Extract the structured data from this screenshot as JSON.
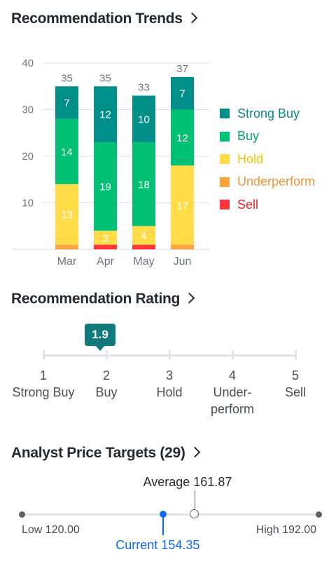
{
  "sections": {
    "trends_title": "Recommendation Trends",
    "rating_title": "Recommendation Rating",
    "targets_title": "Analyst Price Targets (29)"
  },
  "chart_data": {
    "type": "bar",
    "stacked": true,
    "categories": [
      "Mar",
      "Apr",
      "May",
      "Jun"
    ],
    "ylim": [
      0,
      40
    ],
    "yticks": [
      10,
      20,
      30,
      40
    ],
    "totals": [
      35,
      35,
      33,
      37
    ],
    "series": [
      {
        "name": "Sell",
        "color": "#ff333a",
        "values": [
          0,
          1,
          1,
          0
        ]
      },
      {
        "name": "Underperform",
        "color": "#ffa33e",
        "values": [
          1,
          0,
          0,
          1
        ]
      },
      {
        "name": "Hold",
        "color": "#ffdc48",
        "values": [
          13,
          3,
          4,
          17
        ]
      },
      {
        "name": "Buy",
        "color": "#00c073",
        "values": [
          14,
          19,
          18,
          12
        ]
      },
      {
        "name": "Strong Buy",
        "color": "#008f88",
        "values": [
          7,
          12,
          10,
          7
        ]
      }
    ],
    "legend": [
      {
        "name": "Strong Buy",
        "color": "#008f88",
        "text_color": "#0b8a83"
      },
      {
        "name": "Buy",
        "color": "#00c073",
        "text_color": "#00a862"
      },
      {
        "name": "Hold",
        "color": "#ffdc48",
        "text_color": "#f5c400"
      },
      {
        "name": "Underperform",
        "color": "#ffa33e",
        "text_color": "#f29433"
      },
      {
        "name": "Sell",
        "color": "#ff333a",
        "text_color": "#ec1c24"
      }
    ],
    "legend_position": "right",
    "grid": true
  },
  "rating": {
    "value": "1.9",
    "scale": [
      {
        "num": "1",
        "label": "Strong Buy"
      },
      {
        "num": "2",
        "label": "Buy"
      },
      {
        "num": "3",
        "label": "Hold"
      },
      {
        "num": "4",
        "label": "Under-perform"
      },
      {
        "num": "5",
        "label": "Sell"
      }
    ]
  },
  "price_targets": {
    "low_label": "Low 120.00",
    "high_label": "High 192.00",
    "average_label": "Average 161.87",
    "current_label": "Current 154.35",
    "low": 120.0,
    "high": 192.0,
    "average": 161.87,
    "current": 154.35,
    "current_color": "#0f69ff"
  }
}
